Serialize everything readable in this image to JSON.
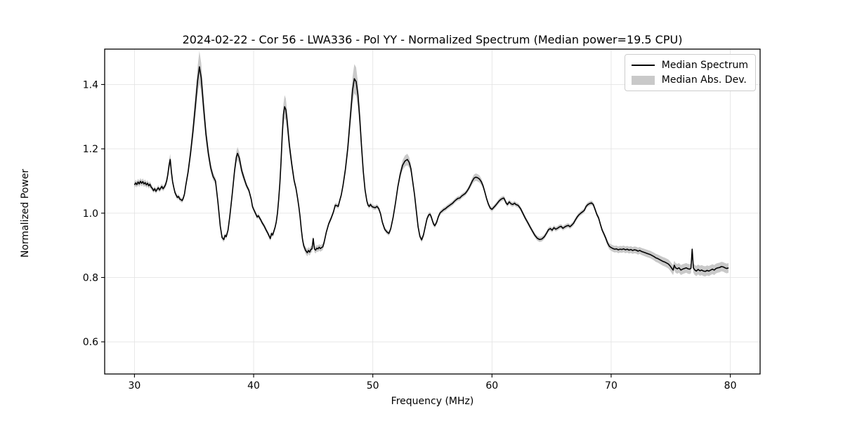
{
  "chart_data": {
    "type": "line",
    "title": "2024-02-22 - Cor 56 - LWA336 - Pol YY - Normalized Spectrum (Median power=19.5 CPU)",
    "xlabel": "Frequency (MHz)",
    "ylabel": "Normalized Power",
    "xlim": [
      27.5,
      82.5
    ],
    "ylim": [
      0.5,
      1.51
    ],
    "x_ticks": [
      30,
      40,
      50,
      60,
      70,
      80
    ],
    "x_tick_labels": [
      "30",
      "40",
      "50",
      "60",
      "70",
      "80"
    ],
    "y_ticks": [
      0.6,
      0.8,
      1.0,
      1.2,
      1.4
    ],
    "y_tick_labels": [
      "0.6",
      "0.8",
      "1.0",
      "1.2",
      "1.4"
    ],
    "grid": true,
    "legend_position": "upper right",
    "colors": {
      "line": "#000000",
      "band": "#c9c9c9",
      "grid": "#e4e4e4",
      "spine": "#000000"
    },
    "series": [
      {
        "name": "Median Spectrum",
        "type": "line",
        "color": "#000000"
      },
      {
        "name": "Median Abs. Dev.",
        "type": "band",
        "color": "#c9c9c9"
      }
    ],
    "mad_model": {
      "base": 0.007,
      "peak_coeff": 0.11,
      "peak_threshold": 1.07,
      "dip_coeff": 0.08,
      "dip_threshold": 0.93
    },
    "points": [
      [
        30.0,
        1.088
      ],
      [
        30.1,
        1.094
      ],
      [
        30.2,
        1.089
      ],
      [
        30.3,
        1.097
      ],
      [
        30.4,
        1.091
      ],
      [
        30.5,
        1.099
      ],
      [
        30.6,
        1.093
      ],
      [
        30.7,
        1.098
      ],
      [
        30.8,
        1.091
      ],
      [
        30.9,
        1.095
      ],
      [
        31.0,
        1.088
      ],
      [
        31.1,
        1.093
      ],
      [
        31.2,
        1.085
      ],
      [
        31.3,
        1.09
      ],
      [
        31.4,
        1.081
      ],
      [
        31.5,
        1.077
      ],
      [
        31.6,
        1.07
      ],
      [
        31.7,
        1.076
      ],
      [
        31.8,
        1.068
      ],
      [
        31.9,
        1.074
      ],
      [
        32.0,
        1.079
      ],
      [
        32.1,
        1.072
      ],
      [
        32.2,
        1.078
      ],
      [
        32.3,
        1.083
      ],
      [
        32.4,
        1.076
      ],
      [
        32.5,
        1.081
      ],
      [
        32.6,
        1.088
      ],
      [
        32.7,
        1.1
      ],
      [
        32.8,
        1.12
      ],
      [
        32.9,
        1.148
      ],
      [
        33.0,
        1.167
      ],
      [
        33.1,
        1.128
      ],
      [
        33.2,
        1.098
      ],
      [
        33.3,
        1.08
      ],
      [
        33.4,
        1.064
      ],
      [
        33.5,
        1.056
      ],
      [
        33.6,
        1.049
      ],
      [
        33.7,
        1.052
      ],
      [
        33.8,
        1.044
      ],
      [
        33.9,
        1.042
      ],
      [
        34.0,
        1.039
      ],
      [
        34.1,
        1.047
      ],
      [
        34.2,
        1.06
      ],
      [
        34.3,
        1.085
      ],
      [
        34.5,
        1.128
      ],
      [
        34.7,
        1.185
      ],
      [
        34.9,
        1.252
      ],
      [
        35.1,
        1.33
      ],
      [
        35.3,
        1.412
      ],
      [
        35.45,
        1.455
      ],
      [
        35.6,
        1.421
      ],
      [
        35.8,
        1.33
      ],
      [
        36.0,
        1.246
      ],
      [
        36.2,
        1.186
      ],
      [
        36.4,
        1.141
      ],
      [
        36.6,
        1.114
      ],
      [
        36.8,
        1.1
      ],
      [
        37.0,
        1.036
      ],
      [
        37.2,
        0.96
      ],
      [
        37.35,
        0.924
      ],
      [
        37.5,
        0.918
      ],
      [
        37.6,
        0.931
      ],
      [
        37.7,
        0.927
      ],
      [
        37.85,
        0.947
      ],
      [
        38.0,
        0.99
      ],
      [
        38.2,
        1.058
      ],
      [
        38.4,
        1.132
      ],
      [
        38.55,
        1.174
      ],
      [
        38.65,
        1.186
      ],
      [
        38.8,
        1.171
      ],
      [
        39.0,
        1.132
      ],
      [
        39.2,
        1.108
      ],
      [
        39.4,
        1.086
      ],
      [
        39.6,
        1.071
      ],
      [
        39.8,
        1.043
      ],
      [
        39.9,
        1.021
      ],
      [
        40.0,
        1.012
      ],
      [
        40.1,
        1.004
      ],
      [
        40.2,
        0.996
      ],
      [
        40.3,
        0.988
      ],
      [
        40.4,
        0.992
      ],
      [
        40.5,
        0.985
      ],
      [
        40.6,
        0.979
      ],
      [
        40.7,
        0.971
      ],
      [
        40.8,
        0.965
      ],
      [
        40.9,
        0.959
      ],
      [
        41.0,
        0.951
      ],
      [
        41.1,
        0.944
      ],
      [
        41.2,
        0.937
      ],
      [
        41.3,
        0.929
      ],
      [
        41.4,
        0.921
      ],
      [
        41.5,
        0.937
      ],
      [
        41.6,
        0.932
      ],
      [
        41.7,
        0.944
      ],
      [
        41.8,
        0.956
      ],
      [
        41.9,
        0.973
      ],
      [
        42.0,
        1.0
      ],
      [
        42.1,
        1.042
      ],
      [
        42.2,
        1.092
      ],
      [
        42.3,
        1.16
      ],
      [
        42.4,
        1.242
      ],
      [
        42.5,
        1.306
      ],
      [
        42.6,
        1.331
      ],
      [
        42.7,
        1.322
      ],
      [
        42.8,
        1.291
      ],
      [
        42.9,
        1.251
      ],
      [
        43.0,
        1.211
      ],
      [
        43.2,
        1.152
      ],
      [
        43.4,
        1.101
      ],
      [
        43.55,
        1.078
      ],
      [
        43.7,
        1.044
      ],
      [
        43.8,
        1.018
      ],
      [
        43.9,
        0.988
      ],
      [
        44.0,
        0.95
      ],
      [
        44.1,
        0.919
      ],
      [
        44.2,
        0.899
      ],
      [
        44.35,
        0.885
      ],
      [
        44.5,
        0.877
      ],
      [
        44.6,
        0.884
      ],
      [
        44.7,
        0.879
      ],
      [
        44.8,
        0.887
      ],
      [
        44.9,
        0.889
      ],
      [
        45.0,
        0.921
      ],
      [
        45.1,
        0.889
      ],
      [
        45.2,
        0.885
      ],
      [
        45.3,
        0.891
      ],
      [
        45.4,
        0.889
      ],
      [
        45.5,
        0.894
      ],
      [
        45.6,
        0.89
      ],
      [
        45.7,
        0.893
      ],
      [
        45.8,
        0.895
      ],
      [
        45.9,
        0.907
      ],
      [
        46.0,
        0.924
      ],
      [
        46.1,
        0.941
      ],
      [
        46.3,
        0.967
      ],
      [
        46.5,
        0.984
      ],
      [
        46.7,
        1.004
      ],
      [
        46.85,
        1.025
      ],
      [
        47.0,
        1.023
      ],
      [
        47.1,
        1.021
      ],
      [
        47.2,
        1.036
      ],
      [
        47.35,
        1.056
      ],
      [
        47.5,
        1.086
      ],
      [
        47.7,
        1.136
      ],
      [
        47.9,
        1.202
      ],
      [
        48.1,
        1.292
      ],
      [
        48.3,
        1.382
      ],
      [
        48.45,
        1.418
      ],
      [
        48.6,
        1.409
      ],
      [
        48.75,
        1.368
      ],
      [
        48.9,
        1.298
      ],
      [
        49.05,
        1.21
      ],
      [
        49.2,
        1.13
      ],
      [
        49.35,
        1.072
      ],
      [
        49.5,
        1.038
      ],
      [
        49.6,
        1.025
      ],
      [
        49.7,
        1.021
      ],
      [
        49.8,
        1.027
      ],
      [
        49.9,
        1.022
      ],
      [
        50.0,
        1.019
      ],
      [
        50.2,
        1.017
      ],
      [
        50.35,
        1.021
      ],
      [
        50.5,
        1.014
      ],
      [
        50.65,
        0.998
      ],
      [
        50.8,
        0.972
      ],
      [
        51.0,
        0.95
      ],
      [
        51.2,
        0.941
      ],
      [
        51.35,
        0.937
      ],
      [
        51.5,
        0.951
      ],
      [
        51.7,
        0.986
      ],
      [
        51.9,
        1.031
      ],
      [
        52.1,
        1.082
      ],
      [
        52.3,
        1.121
      ],
      [
        52.5,
        1.149
      ],
      [
        52.7,
        1.162
      ],
      [
        52.9,
        1.167
      ],
      [
        53.05,
        1.158
      ],
      [
        53.2,
        1.138
      ],
      [
        53.35,
        1.098
      ],
      [
        53.5,
        1.058
      ],
      [
        53.65,
        1.008
      ],
      [
        53.8,
        0.958
      ],
      [
        53.95,
        0.928
      ],
      [
        54.1,
        0.917
      ],
      [
        54.25,
        0.932
      ],
      [
        54.4,
        0.958
      ],
      [
        54.55,
        0.983
      ],
      [
        54.7,
        0.995
      ],
      [
        54.8,
        0.997
      ],
      [
        54.9,
        0.989
      ],
      [
        55.0,
        0.977
      ],
      [
        55.1,
        0.966
      ],
      [
        55.2,
        0.961
      ],
      [
        55.35,
        0.971
      ],
      [
        55.5,
        0.989
      ],
      [
        55.65,
        1.001
      ],
      [
        55.8,
        1.006
      ],
      [
        55.95,
        1.011
      ],
      [
        56.1,
        1.014
      ],
      [
        56.25,
        1.019
      ],
      [
        56.4,
        1.023
      ],
      [
        56.55,
        1.027
      ],
      [
        56.7,
        1.031
      ],
      [
        56.85,
        1.037
      ],
      [
        57.0,
        1.042
      ],
      [
        57.15,
        1.046
      ],
      [
        57.3,
        1.047
      ],
      [
        57.45,
        1.053
      ],
      [
        57.6,
        1.057
      ],
      [
        57.75,
        1.061
      ],
      [
        57.9,
        1.068
      ],
      [
        58.05,
        1.077
      ],
      [
        58.2,
        1.088
      ],
      [
        58.35,
        1.1
      ],
      [
        58.5,
        1.109
      ],
      [
        58.65,
        1.112
      ],
      [
        58.8,
        1.11
      ],
      [
        58.95,
        1.106
      ],
      [
        59.1,
        1.098
      ],
      [
        59.25,
        1.085
      ],
      [
        59.4,
        1.066
      ],
      [
        59.55,
        1.045
      ],
      [
        59.7,
        1.028
      ],
      [
        59.85,
        1.016
      ],
      [
        60.0,
        1.012
      ],
      [
        60.15,
        1.018
      ],
      [
        60.3,
        1.024
      ],
      [
        60.45,
        1.031
      ],
      [
        60.6,
        1.038
      ],
      [
        60.75,
        1.043
      ],
      [
        60.9,
        1.046
      ],
      [
        61.0,
        1.047
      ],
      [
        61.1,
        1.039
      ],
      [
        61.2,
        1.031
      ],
      [
        61.3,
        1.027
      ],
      [
        61.45,
        1.035
      ],
      [
        61.6,
        1.029
      ],
      [
        61.75,
        1.027
      ],
      [
        61.9,
        1.031
      ],
      [
        62.0,
        1.027
      ],
      [
        62.2,
        1.024
      ],
      [
        62.4,
        1.014
      ],
      [
        62.6,
        0.999
      ],
      [
        62.8,
        0.984
      ],
      [
        63.0,
        0.971
      ],
      [
        63.2,
        0.957
      ],
      [
        63.4,
        0.944
      ],
      [
        63.6,
        0.931
      ],
      [
        63.8,
        0.922
      ],
      [
        64.0,
        0.918
      ],
      [
        64.2,
        0.92
      ],
      [
        64.4,
        0.927
      ],
      [
        64.6,
        0.939
      ],
      [
        64.75,
        0.949
      ],
      [
        64.9,
        0.952
      ],
      [
        65.05,
        0.947
      ],
      [
        65.2,
        0.955
      ],
      [
        65.35,
        0.95
      ],
      [
        65.5,
        0.953
      ],
      [
        65.65,
        0.957
      ],
      [
        65.8,
        0.959
      ],
      [
        65.95,
        0.953
      ],
      [
        66.1,
        0.957
      ],
      [
        66.25,
        0.96
      ],
      [
        66.4,
        0.962
      ],
      [
        66.55,
        0.958
      ],
      [
        66.7,
        0.963
      ],
      [
        66.85,
        0.969
      ],
      [
        67.0,
        0.979
      ],
      [
        67.15,
        0.988
      ],
      [
        67.3,
        0.995
      ],
      [
        67.45,
        1.0
      ],
      [
        67.6,
        1.004
      ],
      [
        67.75,
        1.009
      ],
      [
        67.9,
        1.021
      ],
      [
        68.05,
        1.027
      ],
      [
        68.2,
        1.03
      ],
      [
        68.35,
        1.032
      ],
      [
        68.5,
        1.027
      ],
      [
        68.65,
        1.012
      ],
      [
        68.8,
        0.996
      ],
      [
        68.95,
        0.985
      ],
      [
        69.1,
        0.965
      ],
      [
        69.25,
        0.947
      ],
      [
        69.4,
        0.935
      ],
      [
        69.55,
        0.922
      ],
      [
        69.7,
        0.907
      ],
      [
        69.85,
        0.897
      ],
      [
        70.0,
        0.893
      ],
      [
        70.15,
        0.89
      ],
      [
        70.3,
        0.888
      ],
      [
        70.45,
        0.889
      ],
      [
        70.6,
        0.886
      ],
      [
        70.75,
        0.888
      ],
      [
        70.9,
        0.887
      ],
      [
        71.05,
        0.889
      ],
      [
        71.2,
        0.886
      ],
      [
        71.35,
        0.888
      ],
      [
        71.5,
        0.885
      ],
      [
        71.65,
        0.887
      ],
      [
        71.8,
        0.884
      ],
      [
        71.95,
        0.886
      ],
      [
        72.1,
        0.885
      ],
      [
        72.25,
        0.882
      ],
      [
        72.4,
        0.884
      ],
      [
        72.55,
        0.881
      ],
      [
        72.7,
        0.879
      ],
      [
        72.85,
        0.877
      ],
      [
        73.0,
        0.875
      ],
      [
        73.15,
        0.873
      ],
      [
        73.3,
        0.871
      ],
      [
        73.45,
        0.868
      ],
      [
        73.6,
        0.865
      ],
      [
        73.75,
        0.861
      ],
      [
        73.9,
        0.859
      ],
      [
        74.05,
        0.856
      ],
      [
        74.2,
        0.853
      ],
      [
        74.35,
        0.85
      ],
      [
        74.5,
        0.848
      ],
      [
        74.65,
        0.845
      ],
      [
        74.8,
        0.842
      ],
      [
        74.95,
        0.836
      ],
      [
        75.1,
        0.828
      ],
      [
        75.2,
        0.823
      ],
      [
        75.3,
        0.838
      ],
      [
        75.4,
        0.83
      ],
      [
        75.55,
        0.827
      ],
      [
        75.7,
        0.83
      ],
      [
        75.85,
        0.823
      ],
      [
        76.0,
        0.826
      ],
      [
        76.15,
        0.828
      ],
      [
        76.3,
        0.83
      ],
      [
        76.45,
        0.827
      ],
      [
        76.6,
        0.826
      ],
      [
        76.7,
        0.829
      ],
      [
        76.8,
        0.888
      ],
      [
        76.9,
        0.83
      ],
      [
        77.0,
        0.824
      ],
      [
        77.15,
        0.82
      ],
      [
        77.3,
        0.825
      ],
      [
        77.45,
        0.821
      ],
      [
        77.6,
        0.823
      ],
      [
        77.75,
        0.82
      ],
      [
        77.9,
        0.819
      ],
      [
        78.05,
        0.822
      ],
      [
        78.2,
        0.82
      ],
      [
        78.35,
        0.823
      ],
      [
        78.5,
        0.826
      ],
      [
        78.65,
        0.823
      ],
      [
        78.8,
        0.828
      ],
      [
        78.95,
        0.83
      ],
      [
        79.1,
        0.831
      ],
      [
        79.25,
        0.834
      ],
      [
        79.4,
        0.833
      ],
      [
        79.55,
        0.83
      ],
      [
        79.7,
        0.828
      ],
      [
        79.85,
        0.83
      ]
    ]
  }
}
